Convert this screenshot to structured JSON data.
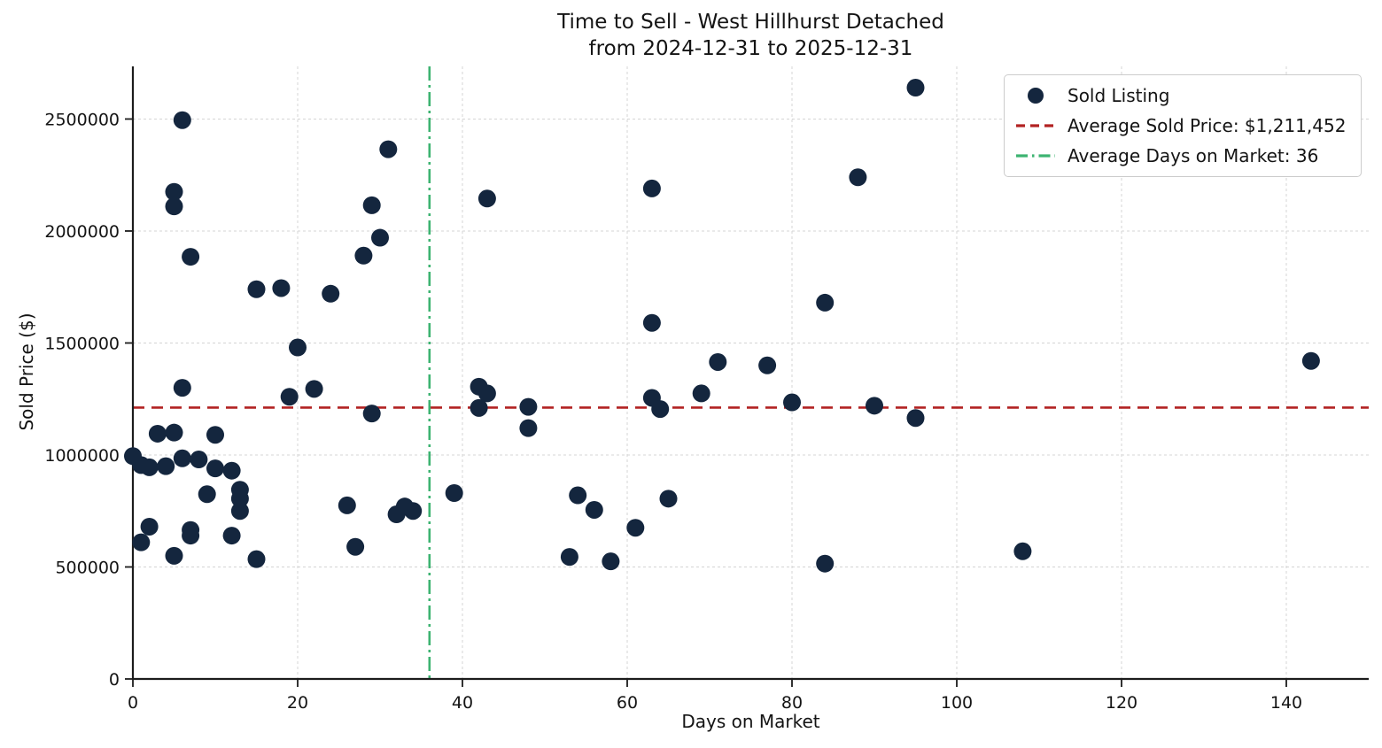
{
  "title": {
    "line1": "Time to Sell - West Hillhurst Detached",
    "line2": "from 2024-12-31 to 2025-12-31"
  },
  "axes": {
    "xlabel": "Days on Market",
    "ylabel": "Sold Price ($)"
  },
  "legend": {
    "position": "upper right",
    "items": [
      {
        "label": "Sold Listing",
        "marker": "dot",
        "color": "#14263e"
      },
      {
        "label": "Average Sold Price: $1,211,452",
        "marker": "dashed-line",
        "color": "#b22222"
      },
      {
        "label": "Average Days on Market: 36",
        "marker": "dashdot-line",
        "color": "#3cb371"
      }
    ]
  },
  "chart_data": {
    "type": "scatter",
    "title": "Time to Sell - West Hillhurst Detached from 2024-12-31 to 2025-12-31",
    "xlabel": "Days on Market",
    "ylabel": "Sold Price ($)",
    "xlim": [
      0,
      150
    ],
    "ylim": [
      0,
      2735000
    ],
    "xticks": [
      0,
      20,
      40,
      60,
      80,
      100,
      120,
      140
    ],
    "yticks": [
      0,
      500000,
      1000000,
      1500000,
      2000000,
      2500000
    ],
    "grid": true,
    "legend_position": "upper right",
    "average_sold_price": 1211452,
    "average_days_on_market": 36,
    "series": [
      {
        "name": "Sold Listing",
        "points": [
          [
            0,
            995000
          ],
          [
            1,
            955000
          ],
          [
            1,
            610000
          ],
          [
            2,
            945000
          ],
          [
            2,
            680000
          ],
          [
            3,
            1095000
          ],
          [
            4,
            950000
          ],
          [
            5,
            1100000
          ],
          [
            5,
            2175000
          ],
          [
            5,
            2110000
          ],
          [
            5,
            550000
          ],
          [
            6,
            2495000
          ],
          [
            6,
            1300000
          ],
          [
            6,
            985000
          ],
          [
            7,
            1885000
          ],
          [
            7,
            665000
          ],
          [
            7,
            640000
          ],
          [
            8,
            980000
          ],
          [
            9,
            825000
          ],
          [
            10,
            1090000
          ],
          [
            10,
            940000
          ],
          [
            12,
            930000
          ],
          [
            12,
            640000
          ],
          [
            13,
            845000
          ],
          [
            13,
            805000
          ],
          [
            13,
            750000
          ],
          [
            15,
            1740000
          ],
          [
            15,
            535000
          ],
          [
            18,
            1745000
          ],
          [
            19,
            1260000
          ],
          [
            20,
            1480000
          ],
          [
            22,
            1295000
          ],
          [
            24,
            1720000
          ],
          [
            26,
            775000
          ],
          [
            27,
            590000
          ],
          [
            28,
            1890000
          ],
          [
            29,
            2115000
          ],
          [
            29,
            1185000
          ],
          [
            30,
            1970000
          ],
          [
            31,
            2365000
          ],
          [
            32,
            735000
          ],
          [
            33,
            770000
          ],
          [
            34,
            750000
          ],
          [
            39,
            830000
          ],
          [
            42,
            1305000
          ],
          [
            42,
            1210000
          ],
          [
            43,
            2145000
          ],
          [
            43,
            1275000
          ],
          [
            48,
            1215000
          ],
          [
            48,
            1120000
          ],
          [
            53,
            545000
          ],
          [
            54,
            820000
          ],
          [
            56,
            755000
          ],
          [
            58,
            525000
          ],
          [
            61,
            675000
          ],
          [
            63,
            2190000
          ],
          [
            63,
            1590000
          ],
          [
            63,
            1255000
          ],
          [
            64,
            1205000
          ],
          [
            65,
            805000
          ],
          [
            69,
            1275000
          ],
          [
            71,
            1415000
          ],
          [
            77,
            1400000
          ],
          [
            80,
            1235000
          ],
          [
            84,
            1680000
          ],
          [
            84,
            515000
          ],
          [
            88,
            2240000
          ],
          [
            90,
            1220000
          ],
          [
            95,
            2640000
          ],
          [
            95,
            1165000
          ],
          [
            108,
            570000
          ],
          [
            143,
            1420000
          ]
        ]
      }
    ],
    "colors": {
      "point": "#14263e",
      "avg_price_line": "#b22222",
      "avg_days_line": "#3cb371",
      "grid": "#d4d4d4",
      "axis": "#1c1c1c",
      "text": "#141414",
      "background": "#ffffff"
    }
  }
}
